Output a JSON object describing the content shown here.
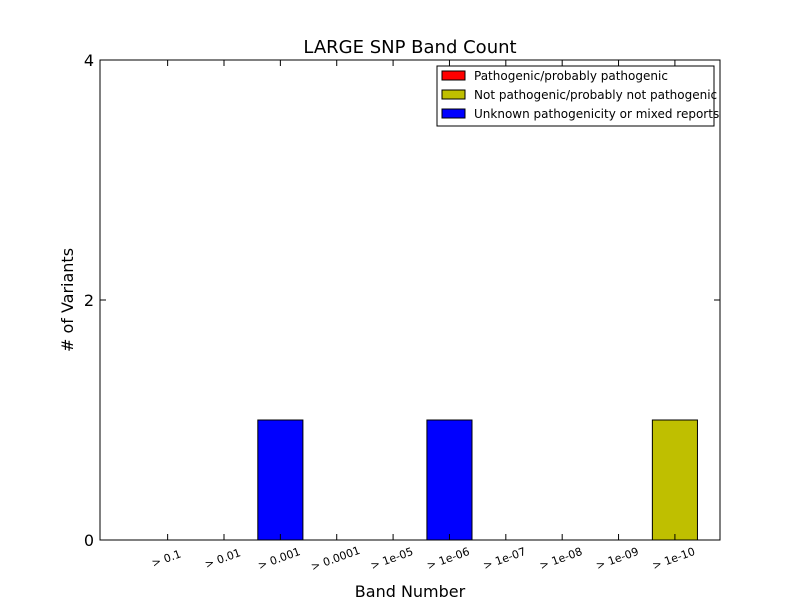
{
  "chart_data": {
    "type": "bar",
    "title": "LARGE SNP Band Count",
    "xlabel": "Band Number",
    "ylabel": "# of Variants",
    "categories": [
      "> 0.1",
      "> 0.01",
      "> 0.001",
      "> 0.0001",
      "> 1e-05",
      "> 1e-06",
      "> 1e-07",
      "> 1e-08",
      "> 1e-09",
      "> 1e-10"
    ],
    "series": [
      {
        "name": "Pathogenic/probably pathogenic",
        "color": "#ff0000",
        "values": [
          0,
          0,
          0,
          0,
          0,
          0,
          0,
          0,
          0,
          0
        ]
      },
      {
        "name": "Not pathogenic/probably not pathogenic",
        "color": "#bfbf00",
        "values": [
          0,
          0,
          0,
          0,
          0,
          0,
          0,
          0,
          0,
          1
        ]
      },
      {
        "name": "Unknown pathogenicity or mixed reports",
        "color": "#0000ff",
        "values": [
          0,
          0,
          1,
          0,
          0,
          1,
          0,
          0,
          0,
          0
        ]
      }
    ],
    "stacked": true,
    "ylim": [
      0,
      4
    ],
    "yticks": [
      0,
      2,
      4
    ],
    "grid": false,
    "legend_position": "top-right"
  }
}
